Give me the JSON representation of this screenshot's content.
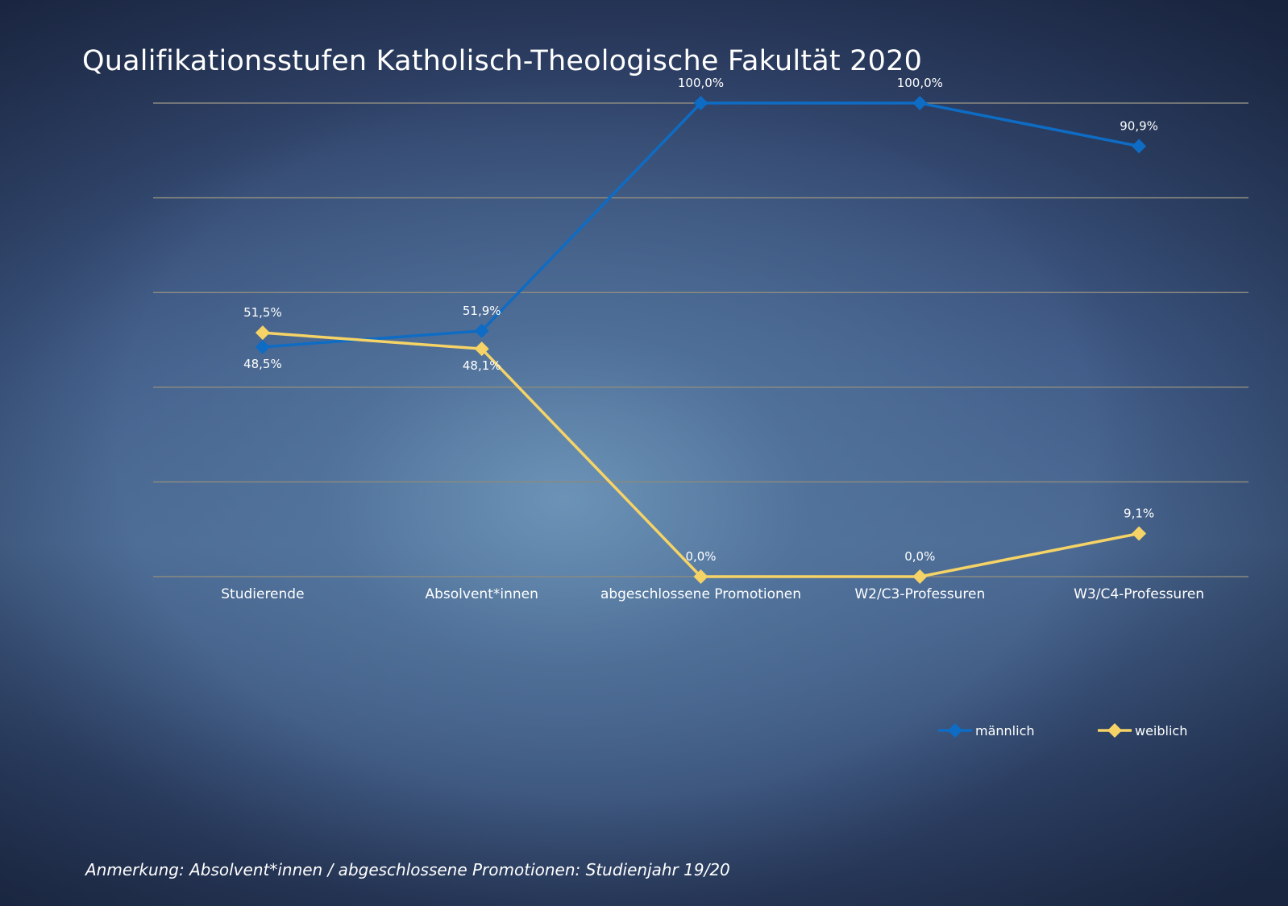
{
  "chart_data": {
    "type": "line",
    "title": "Qualifikationsstufen Katholisch-Theologische Fakultät 2020",
    "categories": [
      "Studierende",
      "Absolvent*innen",
      "abgeschlossene Promotionen",
      "W2/C3-Professuren",
      "W3/C4-Professuren"
    ],
    "series": [
      {
        "name": "männlich",
        "color": "#0e6cc4",
        "values": [
          48.5,
          51.9,
          100.0,
          100.0,
          90.9
        ],
        "labels": [
          "48,5%",
          "51,9%",
          "100,0%",
          "100,0%",
          "90,9%"
        ],
        "label_pos": [
          "below",
          "above",
          "above",
          "above",
          "above"
        ]
      },
      {
        "name": "weiblich",
        "color": "#f5d366",
        "values": [
          51.5,
          48.1,
          0.0,
          0.0,
          9.1
        ],
        "labels": [
          "51,5%",
          "48,1%",
          "0,0%",
          "0,0%",
          "9,1%"
        ],
        "label_pos": [
          "above",
          "below",
          "above",
          "above",
          "above"
        ]
      }
    ],
    "ylim": [
      0,
      100
    ],
    "grid": true,
    "gridline_color": "#8a8a80",
    "legend": "bottom-right",
    "marker": "diamond"
  },
  "footnote": "Anmerkung: Absolvent*innen / abgeschlossene Promotionen: Studienjahr 19/20"
}
